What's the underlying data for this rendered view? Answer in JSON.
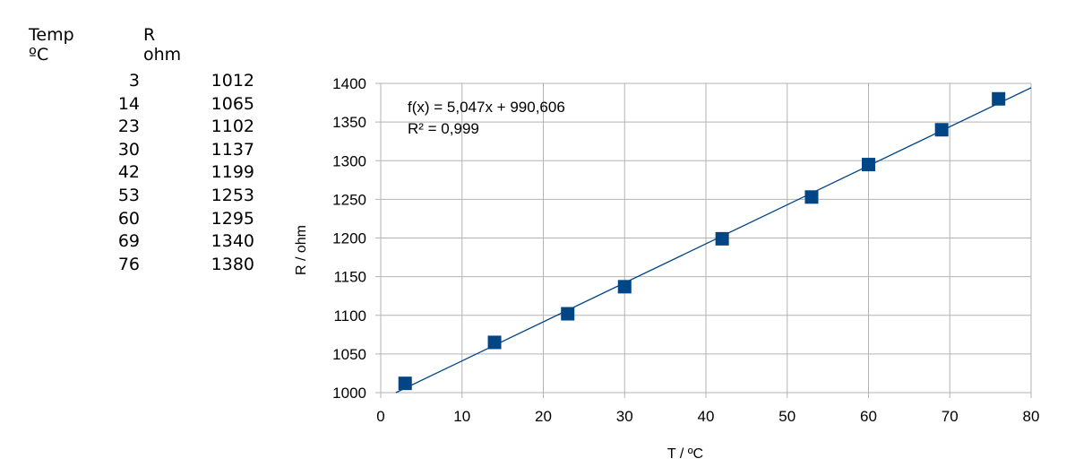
{
  "table": {
    "col1_header_line1": "Temp",
    "col1_header_line2": "ºC",
    "col2_header_line1": "R",
    "col2_header_line2": "ohm",
    "rows": [
      {
        "temp": "3",
        "r": "1012"
      },
      {
        "temp": "14",
        "r": "1065"
      },
      {
        "temp": "23",
        "r": "1102"
      },
      {
        "temp": "30",
        "r": "1137"
      },
      {
        "temp": "42",
        "r": "1199"
      },
      {
        "temp": "53",
        "r": "1253"
      },
      {
        "temp": "60",
        "r": "1295"
      },
      {
        "temp": "69",
        "r": "1340"
      },
      {
        "temp": "76",
        "r": "1380"
      }
    ]
  },
  "chart_data": {
    "type": "scatter",
    "title": "",
    "xlabel": "T / ºC",
    "ylabel": "R / ohm",
    "xlim": [
      0,
      80
    ],
    "ylim": [
      1000,
      1400
    ],
    "xticks": [
      0,
      10,
      20,
      30,
      40,
      50,
      60,
      70,
      80
    ],
    "yticks": [
      1000,
      1050,
      1100,
      1150,
      1200,
      1250,
      1300,
      1350,
      1400
    ],
    "grid": true,
    "legend": "none",
    "series": [
      {
        "x": [
          3,
          14,
          23,
          30,
          42,
          53,
          60,
          69,
          76
        ],
        "y": [
          1012,
          1065,
          1102,
          1137,
          1199,
          1253,
          1295,
          1340,
          1380
        ],
        "color": "#004586",
        "marker": "square"
      }
    ],
    "trendline": {
      "slope": 5.047,
      "intercept": 990.606,
      "color": "#004586",
      "equation_text": "f(x) = 5,047x + 990,606",
      "r2_text": "R² = 0,999"
    }
  }
}
